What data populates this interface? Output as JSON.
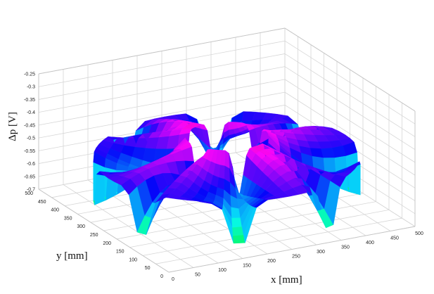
{
  "chart_data": {
    "type": "surface-3d",
    "title": "",
    "xlabel": "x [mm]",
    "ylabel": "y [mm]",
    "zlabel": "Δp [V]",
    "x_ticks": [
      "0",
      "50",
      "100",
      "150",
      "200",
      "250",
      "300",
      "350",
      "400",
      "450",
      "500"
    ],
    "y_ticks": [
      "0",
      "50",
      "100",
      "150",
      "200",
      "250",
      "300",
      "350",
      "400",
      "450",
      "500"
    ],
    "z_ticks": [
      "-0.25",
      "-0.3",
      "-0.35",
      "-0.4",
      "-0.45",
      "-0.5",
      "-0.55",
      "-0.6",
      "-0.65",
      "-0.7"
    ],
    "xlim": [
      0,
      500
    ],
    "ylim": [
      0,
      500
    ],
    "zlim": [
      -0.7,
      -0.25
    ],
    "grid": true,
    "colormap": "hsv",
    "surface": {
      "shape": "annular ring",
      "center": [
        250,
        250
      ],
      "outer_radius": 240,
      "inner_radius": 75,
      "outer_rim_z": -0.5,
      "inner_rim_z": -0.42,
      "outer_rim_dips": 8,
      "dip_z": -0.7,
      "central_dip_z": -0.6
    }
  }
}
